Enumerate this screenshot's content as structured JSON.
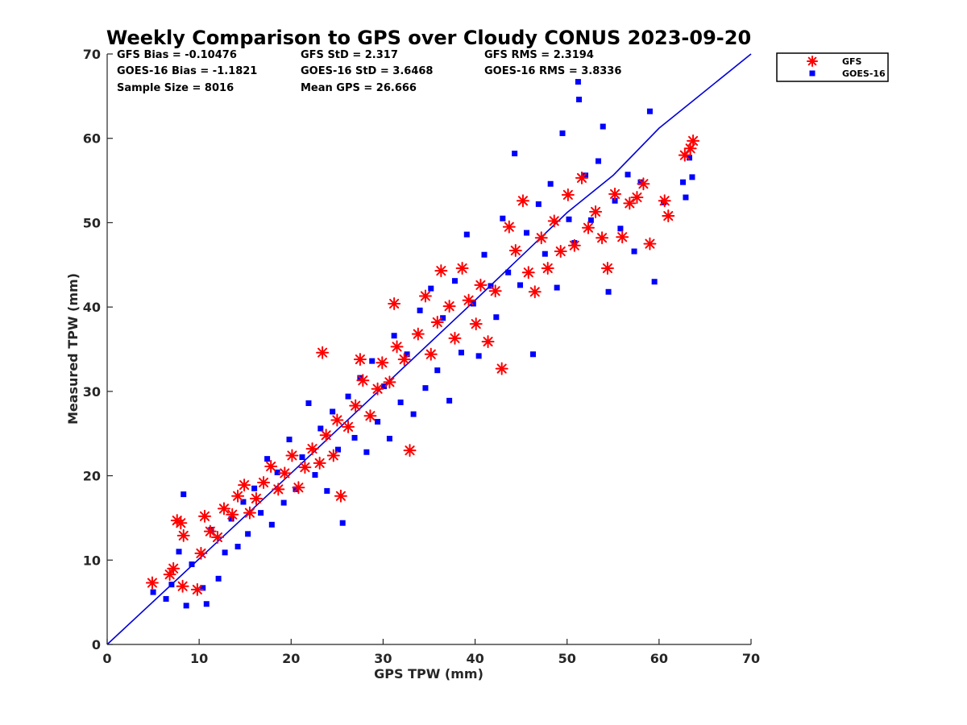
{
  "chart_data": {
    "type": "scatter",
    "title": "Weekly Comparison to GPS over Cloudy CONUS 2023-09-20",
    "xlabel": "GPS TPW (mm)",
    "ylabel": "Measured TPW (mm)",
    "xlim": [
      0,
      70
    ],
    "ylim": [
      0,
      70
    ],
    "xticks": [
      "0",
      "10",
      "20",
      "30",
      "40",
      "50",
      "60",
      "70"
    ],
    "yticks": [
      "0",
      "10",
      "20",
      "30",
      "40",
      "50",
      "60",
      "70"
    ],
    "grid": false,
    "legend_position": "outside top-right",
    "stats": [
      [
        "GFS Bias = -0.10476",
        "GFS StD = 2.317",
        "GFS RMS = 2.3194"
      ],
      [
        "GOES-16 Bias = -1.1821",
        "GOES-16 StD = 3.6468",
        "GOES-16 RMS = 3.8336"
      ],
      [
        "Sample Size = 8016",
        "Mean GPS = 26.666",
        ""
      ]
    ],
    "reference_line": {
      "color": "#0000dd",
      "points": [
        [
          0,
          0
        ],
        [
          20,
          20.3
        ],
        [
          40,
          40.8
        ],
        [
          50,
          51.2
        ],
        [
          55,
          55.6
        ],
        [
          60,
          61.2
        ],
        [
          70,
          70
        ]
      ]
    },
    "series": [
      {
        "name": "GFS",
        "marker": "asterisk",
        "color": "#ff0000",
        "points": [
          [
            4.9,
            7.3
          ],
          [
            6.8,
            8.3
          ],
          [
            7.2,
            9.0
          ],
          [
            7.6,
            14.7
          ],
          [
            8.0,
            14.4
          ],
          [
            8.3,
            12.9
          ],
          [
            8.2,
            6.9
          ],
          [
            9.8,
            6.5
          ],
          [
            10.2,
            10.8
          ],
          [
            10.6,
            15.2
          ],
          [
            11.2,
            13.4
          ],
          [
            12.0,
            12.7
          ],
          [
            12.7,
            16.1
          ],
          [
            13.6,
            15.4
          ],
          [
            14.2,
            17.6
          ],
          [
            14.9,
            18.9
          ],
          [
            15.5,
            15.6
          ],
          [
            16.2,
            17.3
          ],
          [
            17.0,
            19.2
          ],
          [
            17.8,
            21.1
          ],
          [
            18.6,
            18.4
          ],
          [
            19.3,
            20.3
          ],
          [
            20.1,
            22.4
          ],
          [
            20.8,
            18.6
          ],
          [
            21.5,
            21.0
          ],
          [
            22.3,
            23.2
          ],
          [
            23.1,
            21.5
          ],
          [
            23.8,
            24.8
          ],
          [
            23.4,
            34.6
          ],
          [
            24.6,
            22.4
          ],
          [
            25.0,
            26.6
          ],
          [
            25.4,
            17.6
          ],
          [
            26.2,
            25.8
          ],
          [
            27.0,
            28.3
          ],
          [
            27.8,
            31.3
          ],
          [
            27.5,
            33.8
          ],
          [
            28.6,
            27.1
          ],
          [
            29.4,
            30.3
          ],
          [
            29.9,
            33.4
          ],
          [
            30.7,
            31.1
          ],
          [
            31.2,
            40.4
          ],
          [
            31.5,
            35.3
          ],
          [
            32.3,
            33.8
          ],
          [
            32.9,
            23.0
          ],
          [
            33.8,
            36.8
          ],
          [
            34.6,
            41.3
          ],
          [
            35.2,
            34.4
          ],
          [
            35.9,
            38.2
          ],
          [
            36.3,
            44.3
          ],
          [
            37.2,
            40.1
          ],
          [
            37.8,
            36.3
          ],
          [
            38.6,
            44.6
          ],
          [
            39.3,
            40.8
          ],
          [
            40.1,
            38.0
          ],
          [
            40.6,
            42.6
          ],
          [
            41.4,
            35.9
          ],
          [
            42.2,
            41.9
          ],
          [
            42.9,
            32.7
          ],
          [
            43.7,
            49.5
          ],
          [
            44.4,
            46.7
          ],
          [
            45.2,
            52.6
          ],
          [
            45.8,
            44.1
          ],
          [
            46.5,
            41.8
          ],
          [
            47.2,
            48.2
          ],
          [
            47.9,
            44.6
          ],
          [
            48.6,
            50.2
          ],
          [
            49.3,
            46.6
          ],
          [
            50.1,
            53.3
          ],
          [
            50.8,
            47.3
          ],
          [
            51.6,
            55.3
          ],
          [
            52.3,
            49.4
          ],
          [
            53.1,
            51.3
          ],
          [
            53.8,
            48.2
          ],
          [
            54.4,
            44.6
          ],
          [
            55.2,
            53.4
          ],
          [
            56.0,
            48.3
          ],
          [
            56.8,
            52.3
          ],
          [
            57.6,
            53.0
          ],
          [
            58.3,
            54.6
          ],
          [
            59.0,
            47.5
          ],
          [
            60.6,
            52.6
          ],
          [
            61.0,
            50.8
          ],
          [
            62.8,
            58.0
          ],
          [
            63.4,
            58.8
          ],
          [
            63.7,
            59.7
          ]
        ]
      },
      {
        "name": "GOES-16",
        "marker": "square",
        "color": "#0000ff",
        "points": [
          [
            5.0,
            6.2
          ],
          [
            6.4,
            5.4
          ],
          [
            7.0,
            7.1
          ],
          [
            7.8,
            11.0
          ],
          [
            8.3,
            17.8
          ],
          [
            8.6,
            4.6
          ],
          [
            9.2,
            9.5
          ],
          [
            10.4,
            6.7
          ],
          [
            10.8,
            4.8
          ],
          [
            11.3,
            13.6
          ],
          [
            12.1,
            7.8
          ],
          [
            12.8,
            10.9
          ],
          [
            13.5,
            14.9
          ],
          [
            14.2,
            11.6
          ],
          [
            14.8,
            16.9
          ],
          [
            15.3,
            13.1
          ],
          [
            16.0,
            18.5
          ],
          [
            16.7,
            15.6
          ],
          [
            17.4,
            22.0
          ],
          [
            17.9,
            14.2
          ],
          [
            18.5,
            20.4
          ],
          [
            19.2,
            16.8
          ],
          [
            19.8,
            24.3
          ],
          [
            20.5,
            18.4
          ],
          [
            21.2,
            22.2
          ],
          [
            21.9,
            28.6
          ],
          [
            22.6,
            20.1
          ],
          [
            23.2,
            25.6
          ],
          [
            23.9,
            18.2
          ],
          [
            24.5,
            27.6
          ],
          [
            25.1,
            23.1
          ],
          [
            25.6,
            14.4
          ],
          [
            26.2,
            29.4
          ],
          [
            26.9,
            24.5
          ],
          [
            27.5,
            31.6
          ],
          [
            28.2,
            22.8
          ],
          [
            28.8,
            33.6
          ],
          [
            29.4,
            26.4
          ],
          [
            30.1,
            30.6
          ],
          [
            30.7,
            24.4
          ],
          [
            31.2,
            36.6
          ],
          [
            31.9,
            28.7
          ],
          [
            32.6,
            34.4
          ],
          [
            33.3,
            27.3
          ],
          [
            34.0,
            39.6
          ],
          [
            34.6,
            30.4
          ],
          [
            35.2,
            42.2
          ],
          [
            35.9,
            32.5
          ],
          [
            36.5,
            38.7
          ],
          [
            37.2,
            28.9
          ],
          [
            37.8,
            43.1
          ],
          [
            38.5,
            34.6
          ],
          [
            39.1,
            48.6
          ],
          [
            39.8,
            40.4
          ],
          [
            40.4,
            34.2
          ],
          [
            41.0,
            46.2
          ],
          [
            41.7,
            42.5
          ],
          [
            42.3,
            38.8
          ],
          [
            43.0,
            50.5
          ],
          [
            43.6,
            44.1
          ],
          [
            44.3,
            58.2
          ],
          [
            44.9,
            42.6
          ],
          [
            45.6,
            48.8
          ],
          [
            46.3,
            34.4
          ],
          [
            46.9,
            52.2
          ],
          [
            47.6,
            46.3
          ],
          [
            48.2,
            54.6
          ],
          [
            48.9,
            42.3
          ],
          [
            49.5,
            60.6
          ],
          [
            50.2,
            50.4
          ],
          [
            50.8,
            47.6
          ],
          [
            51.3,
            64.6
          ],
          [
            51.2,
            66.7
          ],
          [
            52.0,
            55.6
          ],
          [
            52.6,
            50.3
          ],
          [
            53.4,
            57.3
          ],
          [
            53.9,
            61.4
          ],
          [
            54.5,
            41.8
          ],
          [
            55.2,
            52.6
          ],
          [
            55.8,
            49.3
          ],
          [
            56.6,
            55.7
          ],
          [
            57.3,
            46.6
          ],
          [
            58.0,
            54.8
          ],
          [
            59.0,
            63.2
          ],
          [
            59.5,
            43.0
          ],
          [
            60.5,
            52.4
          ],
          [
            62.6,
            54.8
          ],
          [
            62.9,
            53.0
          ],
          [
            63.3,
            57.7
          ],
          [
            63.6,
            55.4
          ]
        ]
      }
    ]
  }
}
